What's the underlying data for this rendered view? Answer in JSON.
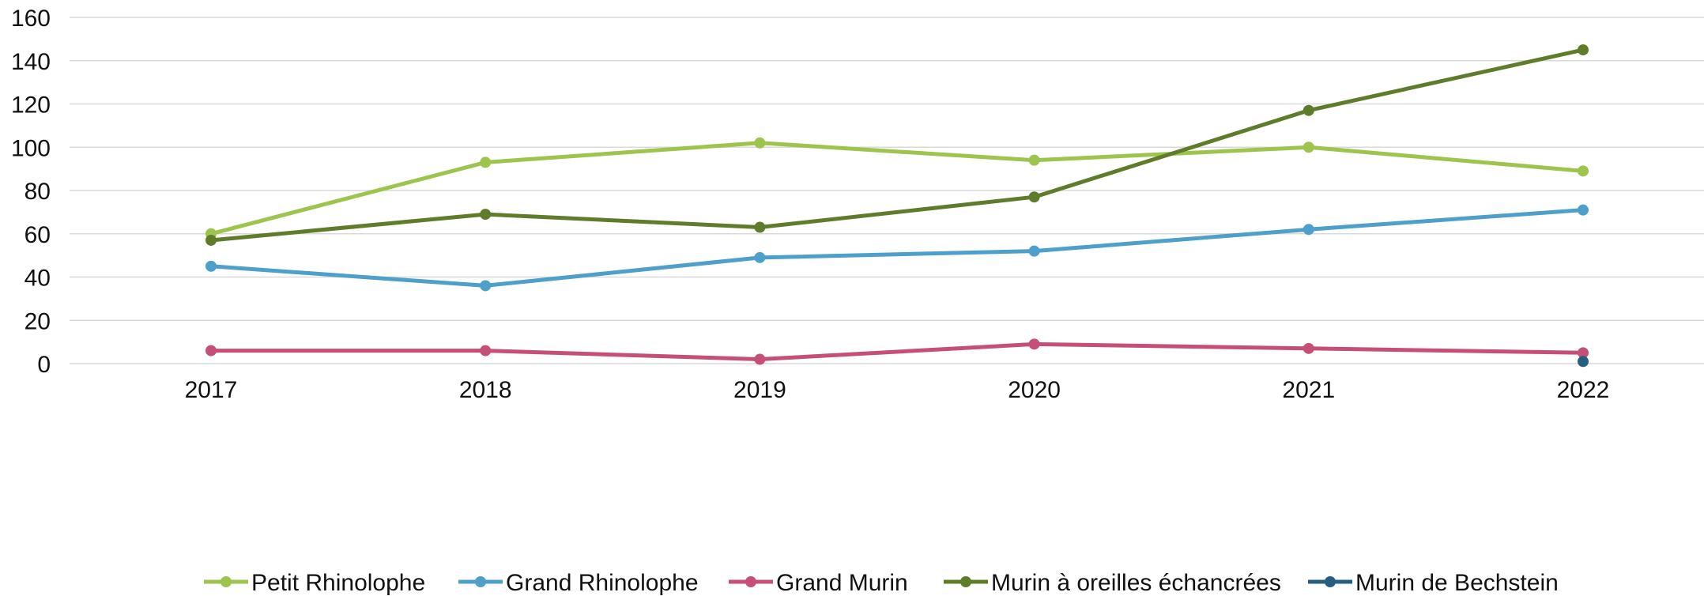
{
  "chart_data": {
    "type": "line",
    "title": "",
    "xlabel": "",
    "ylabel": "",
    "x": [
      "2017",
      "2018",
      "2019",
      "2020",
      "2021",
      "2022"
    ],
    "ylim": [
      0,
      160
    ],
    "yticks": [
      "0",
      "20",
      "40",
      "60",
      "80",
      "100",
      "120",
      "140",
      "160"
    ],
    "grid": "horizontal",
    "legend_position": "bottom",
    "series": [
      {
        "name": "Petit Rhinolophe",
        "color": "#9dc44d",
        "values": [
          60,
          93,
          102,
          94,
          100,
          89
        ]
      },
      {
        "name": "Grand Rhinolophe",
        "color": "#4d9fcc",
        "values": [
          45,
          36,
          49,
          52,
          62,
          71
        ]
      },
      {
        "name": "Grand Murin",
        "color": "#c64f78",
        "values": [
          6,
          6,
          2,
          9,
          7,
          5
        ]
      },
      {
        "name": "Murin à oreilles échancrées",
        "color": "#5f7c2a",
        "values": [
          57,
          69,
          63,
          77,
          117,
          145
        ]
      },
      {
        "name": "Murin de Bechstein",
        "color": "#245f80",
        "values": [
          null,
          null,
          null,
          null,
          null,
          1
        ]
      }
    ]
  }
}
